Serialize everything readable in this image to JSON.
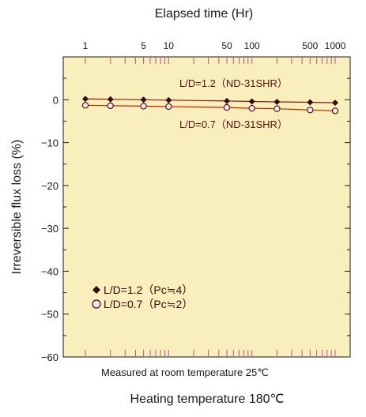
{
  "chart_data": {
    "type": "line",
    "x_axis": {
      "label": "Elapsed time (Hr)",
      "scale": "log",
      "range": [
        1,
        1000
      ],
      "tick_labels": [
        "1",
        "5",
        "10",
        "50",
        "100",
        "500",
        "1000"
      ],
      "tick_values": [
        1,
        5,
        10,
        50,
        100,
        500,
        1000
      ]
    },
    "y_axis": {
      "label": "Irreversible flux loss (%)",
      "range": [
        -60,
        10
      ],
      "tick_values": [
        0,
        -10,
        -20,
        -30,
        -40,
        -50,
        -60
      ],
      "tick_labels": [
        "0",
        "−10",
        "−20",
        "−30",
        "−40",
        "−50",
        "−60"
      ]
    },
    "series": [
      {
        "name": "L/D=1.2（Pc≒4）",
        "annotation": "L/D=1.2（ND-31SHR）",
        "marker": "filled-diamond",
        "color": "#3a0a0a",
        "line_color": "#8b1a1a",
        "x": [
          1,
          2,
          5,
          10,
          50,
          100,
          200,
          500,
          1000
        ],
        "y": [
          0.2,
          0.1,
          0.0,
          -0.1,
          -0.3,
          -0.4,
          -0.5,
          -0.6,
          -0.7
        ]
      },
      {
        "name": "L/D=0.7（Pc≒2）",
        "annotation": "L/D=0.7（ND-31SHR）",
        "marker": "open-circle",
        "color": "#3a0a0a",
        "fill": "#fbe7f0",
        "line_color": "#cc2200",
        "x": [
          1,
          2,
          5,
          10,
          50,
          100,
          200,
          500,
          1000
        ],
        "y": [
          -1.3,
          -1.4,
          -1.5,
          -1.6,
          -1.8,
          -2.0,
          -2.1,
          -2.4,
          -2.6
        ]
      }
    ],
    "legend_position": "bottom-left",
    "note": "Measured at room temperature  25℃",
    "footer": "Heating temperature  180℃",
    "background_color": "#f8efbd",
    "grid": false
  }
}
